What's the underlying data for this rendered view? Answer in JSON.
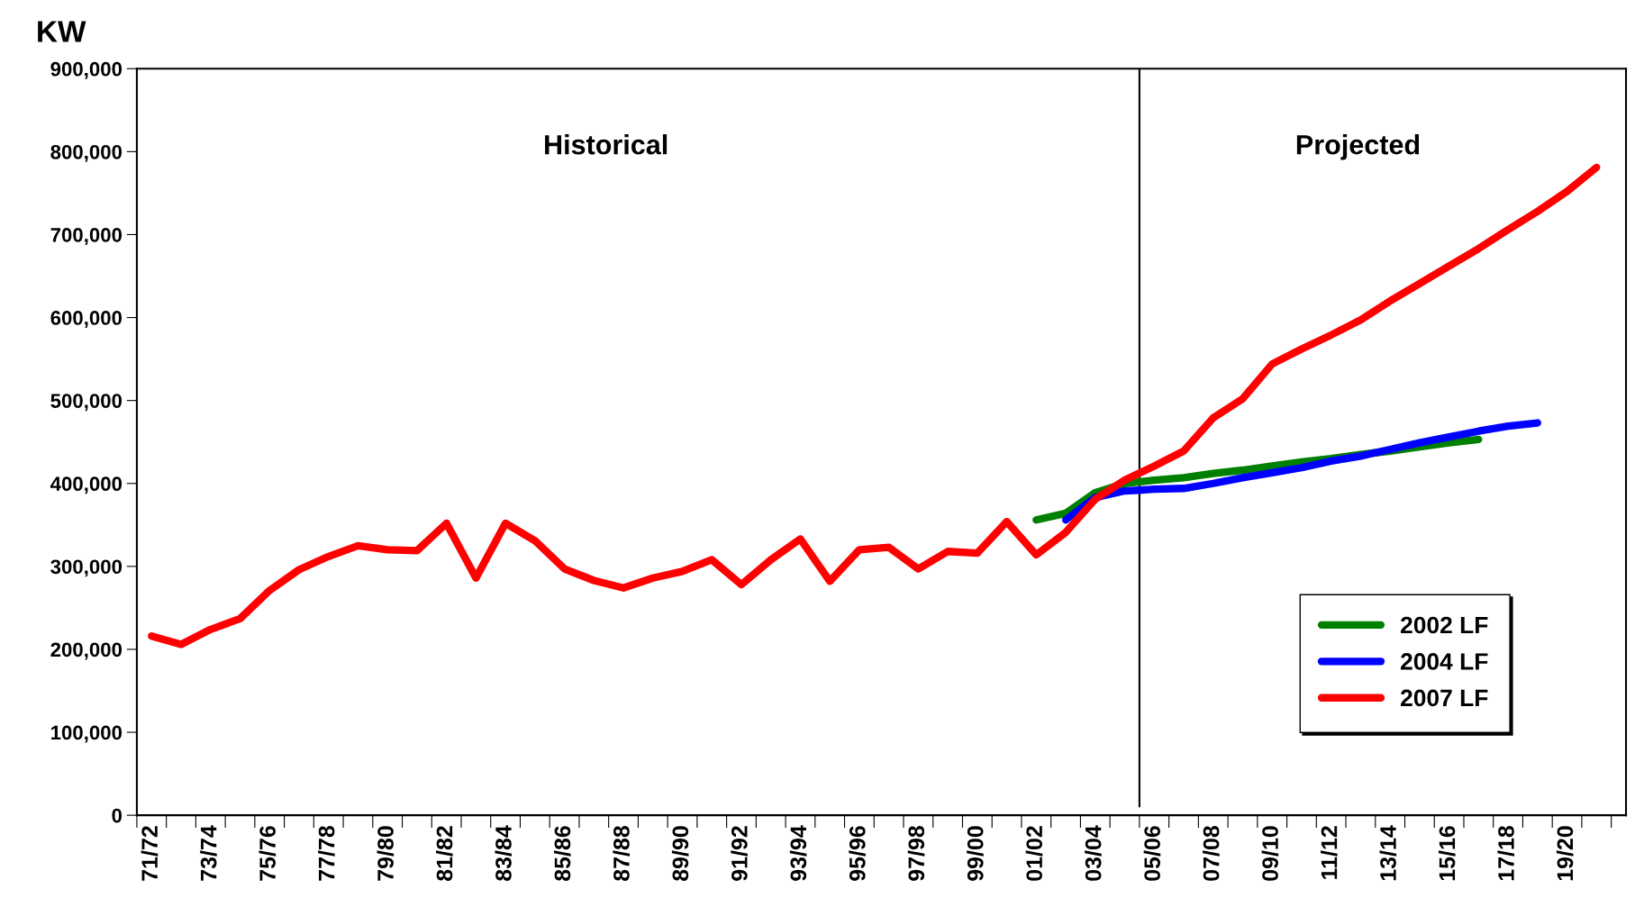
{
  "chart_data": {
    "type": "line",
    "ylabel": "KW",
    "annotations": [
      "Historical",
      "Projected"
    ],
    "categories": [
      "71/72",
      null,
      "73/74",
      null,
      "75/76",
      null,
      "77/78",
      null,
      "79/80",
      null,
      "81/82",
      null,
      "83/84",
      null,
      "85/86",
      null,
      "87/88",
      null,
      "89/90",
      null,
      "91/92",
      null,
      "93/94",
      null,
      "95/96",
      null,
      "97/98",
      null,
      "99/00",
      null,
      "01/02",
      null,
      "03/04",
      null,
      "05/06",
      null,
      "07/08",
      null,
      "09/10",
      null,
      "11/12",
      null,
      "13/14",
      null,
      "15/16",
      null,
      "17/18",
      null,
      "19/20",
      null
    ],
    "series": [
      {
        "name": "2002 LF",
        "color": "#008000",
        "values": [
          null,
          null,
          null,
          null,
          null,
          null,
          null,
          null,
          null,
          null,
          null,
          null,
          null,
          null,
          null,
          null,
          null,
          null,
          null,
          null,
          null,
          null,
          null,
          null,
          null,
          null,
          null,
          null,
          null,
          null,
          356000,
          364000,
          389000,
          400000,
          404000,
          407000,
          412000,
          416000,
          421000,
          426000,
          430000,
          435000,
          439000,
          444000,
          449000,
          453000,
          null,
          null,
          null,
          null
        ]
      },
      {
        "name": "2004 LF",
        "color": "#0000ff",
        "values": [
          null,
          null,
          null,
          null,
          null,
          null,
          null,
          null,
          null,
          null,
          null,
          null,
          null,
          null,
          null,
          null,
          null,
          null,
          null,
          null,
          null,
          null,
          null,
          null,
          null,
          null,
          null,
          null,
          null,
          null,
          null,
          356000,
          383000,
          391000,
          393000,
          394000,
          400000,
          407000,
          413000,
          419000,
          427000,
          433000,
          441000,
          449000,
          456000,
          463000,
          469000,
          473000,
          null,
          null
        ]
      },
      {
        "name": "2007 LF",
        "color": "#ff0000",
        "values": [
          216000,
          206000,
          224000,
          237000,
          271000,
          296000,
          312000,
          325000,
          320000,
          319000,
          352000,
          286000,
          352000,
          331000,
          297000,
          283000,
          274000,
          286000,
          294000,
          308000,
          278000,
          308000,
          333000,
          282000,
          320000,
          323000,
          297000,
          318000,
          316000,
          354000,
          314000,
          341000,
          381000,
          404000,
          421000,
          439000,
          479000,
          502000,
          544000,
          562000,
          579000,
          597000,
          620000,
          641000,
          662000,
          683000,
          706000,
          728000,
          752000,
          781000
        ]
      }
    ],
    "ylim": [
      0,
      900000
    ],
    "yticks": [
      0,
      {
        "value": 100000,
        "label": "100,000"
      },
      {
        "value": 200000,
        "label": "200,000"
      },
      {
        "value": 300000,
        "label": "300,000"
      },
      {
        "value": 400000,
        "label": "400,000"
      },
      {
        "value": 500000,
        "label": "500,000"
      },
      {
        "value": 600000,
        "label": "600,000"
      },
      {
        "value": 700000,
        "label": "700,000"
      },
      {
        "value": 800000,
        "label": "800,000"
      },
      {
        "value": 900000,
        "label": "900,000"
      }
    ],
    "grid": false,
    "legend": "bottom right",
    "marker": "none",
    "line_style": "solid"
  }
}
